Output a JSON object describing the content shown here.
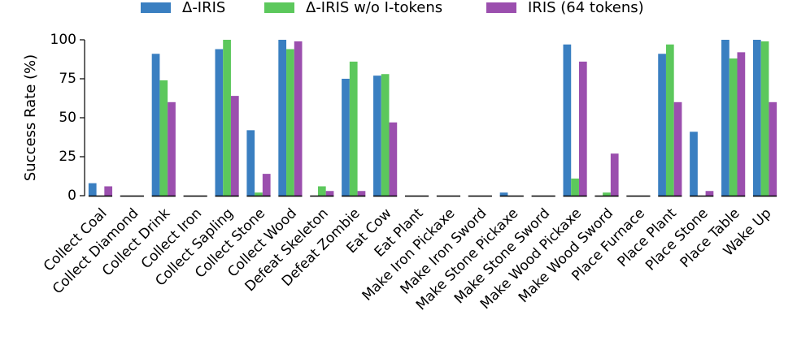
{
  "chart_data": {
    "type": "bar",
    "ylabel": "Success Rate (%)",
    "ylim": [
      0,
      100
    ],
    "yticks": [
      0,
      25,
      50,
      75,
      100
    ],
    "grid": false,
    "legend_position": "top-center",
    "categories": [
      "Collect Coal",
      "Collect Diamond",
      "Collect Drink",
      "Collect Iron",
      "Collect Sapling",
      "Collect Stone",
      "Collect Wood",
      "Defeat Skeleton",
      "Defeat Zombie",
      "Eat Cow",
      "Eat Plant",
      "Make Iron Pickaxe",
      "Make Iron Sword",
      "Make Stone Pickaxe",
      "Make Stone Sword",
      "Make Wood Pickaxe",
      "Make Wood Sword",
      "Place Furnace",
      "Place Plant",
      "Place Stone",
      "Place Table",
      "Wake Up"
    ],
    "series": [
      {
        "name": "Δ-IRIS",
        "color": "#3a7fc1",
        "values": [
          8,
          0,
          91,
          0,
          94,
          42,
          100,
          0,
          75,
          77,
          0,
          0,
          0,
          2,
          0,
          97,
          0,
          0,
          91,
          41,
          100,
          100
        ]
      },
      {
        "name": "Δ-IRIS w/o I-tokens",
        "color": "#5cc85c",
        "values": [
          0,
          0,
          74,
          0,
          100,
          2,
          94,
          6,
          86,
          78,
          0,
          0,
          0,
          0,
          0,
          11,
          2,
          0,
          97,
          0,
          88,
          99
        ]
      },
      {
        "name": "IRIS (64 tokens)",
        "color": "#9b4fae",
        "values": [
          6,
          0,
          60,
          0,
          64,
          14,
          99,
          3,
          3,
          47,
          0,
          0,
          0,
          0,
          0,
          86,
          27,
          0,
          60,
          3,
          92,
          60
        ]
      }
    ]
  }
}
